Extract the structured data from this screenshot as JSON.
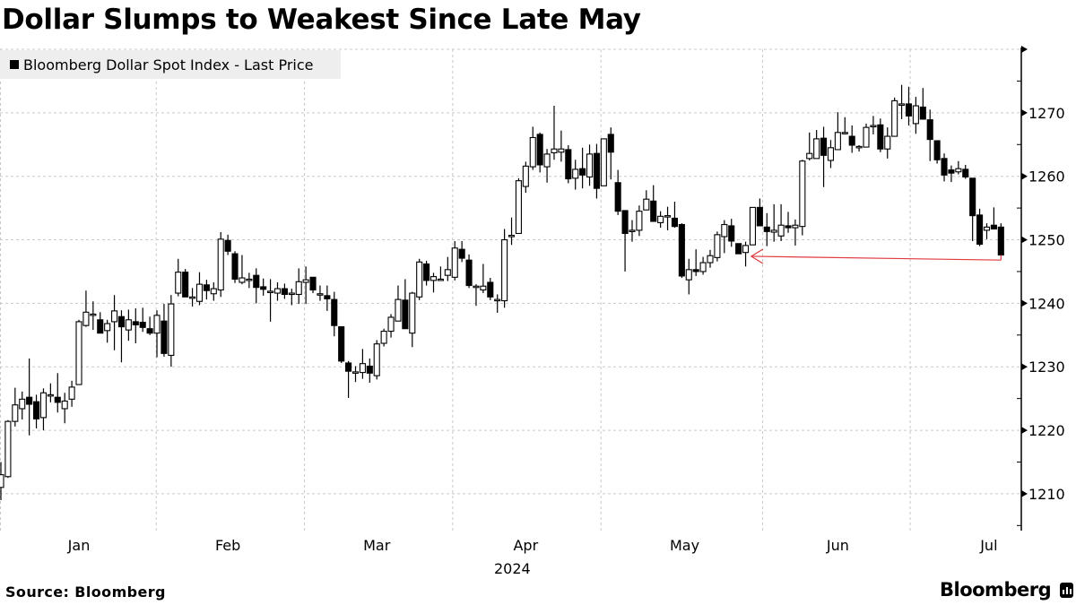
{
  "title": "Dollar Slumps to Weakest Since Late May",
  "legend": {
    "label": "Bloomberg Dollar Spot Index - Last Price"
  },
  "footer": {
    "source": "Source: Bloomberg",
    "brand": "Bloomberg"
  },
  "colors": {
    "up_fill": "#ffffff",
    "down_fill": "#000000",
    "grid": "#c8c8c8",
    "arrow": "#e0393e",
    "legend_bg": "#eeeeee"
  },
  "chart_data": {
    "type": "candlestick",
    "title": "Dollar Slumps to Weakest Since Late May",
    "series_name": "Bloomberg Dollar Spot Index - Last Price",
    "xlabel": "2024",
    "ylabel": "",
    "ylim": [
      1204.2,
      1280
    ],
    "y_ticks": [
      1210,
      1220,
      1230,
      1240,
      1250,
      1260,
      1270
    ],
    "y_grid": [
      1210,
      1220,
      1230,
      1240,
      1250,
      1260,
      1270,
      1280
    ],
    "x_month_labels": [
      {
        "label": "Jan",
        "index": 11
      },
      {
        "label": "Feb",
        "index": 32
      },
      {
        "label": "Mar",
        "index": 53
      },
      {
        "label": "Apr",
        "index": 74
      },
      {
        "label": "May",
        "index": 96.4
      },
      {
        "label": "Jun",
        "index": 118
      },
      {
        "label": "Jul",
        "index": 139.3
      }
    ],
    "x_month_boundaries": [
      21.9,
      42.8,
      63.7,
      84.6,
      107.4,
      128.2
    ],
    "year_label": "2024",
    "grid": true,
    "legend_position": "top-left",
    "candle_fields": [
      "open",
      "high",
      "low",
      "close"
    ],
    "candles": [
      [
        1211,
        1215,
        1209,
        1213
      ],
      [
        1212.7,
        1221.6,
        1212.5,
        1221.4
      ],
      [
        1221.4,
        1226.7,
        1220.6,
        1224.0
      ],
      [
        1223.4,
        1226.1,
        1221.7,
        1224.9
      ],
      [
        1225.2,
        1231.3,
        1219.2,
        1224.1
      ],
      [
        1224.5,
        1225.6,
        1220.3,
        1221.8
      ],
      [
        1222.0,
        1226.6,
        1220.0,
        1225.9
      ],
      [
        1225.6,
        1227.4,
        1224.4,
        1225.6
      ],
      [
        1225.2,
        1229.0,
        1222.8,
        1224.4
      ],
      [
        1223.4,
        1225.9,
        1221.1,
        1224.6
      ],
      [
        1224.9,
        1227.8,
        1223.7,
        1226.8
      ],
      [
        1227.2,
        1237.4,
        1227.2,
        1237.1
      ],
      [
        1236.5,
        1242.0,
        1236.3,
        1238.6
      ],
      [
        1238.3,
        1240.3,
        1235.8,
        1238.3
      ],
      [
        1237.4,
        1238.6,
        1235.3,
        1235.3
      ],
      [
        1235.7,
        1237.4,
        1233.8,
        1236.8
      ],
      [
        1237.1,
        1241.3,
        1232.6,
        1238.8
      ],
      [
        1237.9,
        1238.9,
        1230.7,
        1236.3
      ],
      [
        1235.8,
        1239.0,
        1234.1,
        1237.4
      ],
      [
        1237.1,
        1239.2,
        1233.7,
        1236.6
      ],
      [
        1237.0,
        1239.3,
        1235.5,
        1236.2
      ],
      [
        1236.0,
        1237.9,
        1235.0,
        1235.3
      ],
      [
        1235.3,
        1238.9,
        1231.5,
        1238.1
      ],
      [
        1237.2,
        1239.9,
        1231.6,
        1232.1
      ],
      [
        1231.8,
        1241.3,
        1230.0,
        1239.9
      ],
      [
        1241.6,
        1247.0,
        1241.1,
        1244.9
      ],
      [
        1244.9,
        1245.4,
        1241.0,
        1241.0
      ],
      [
        1241.0,
        1242.4,
        1239.5,
        1241.0
      ],
      [
        1240.3,
        1244.9,
        1239.7,
        1243.0
      ],
      [
        1242.9,
        1243.7,
        1240.6,
        1242.0
      ],
      [
        1241.5,
        1243.3,
        1240.4,
        1242.3
      ],
      [
        1242.1,
        1251.2,
        1241.0,
        1250.1
      ],
      [
        1249.9,
        1250.8,
        1247.6,
        1248.2
      ],
      [
        1247.8,
        1248.2,
        1243.2,
        1243.8
      ],
      [
        1243.3,
        1247.6,
        1243.0,
        1244.0
      ],
      [
        1243.6,
        1244.8,
        1242.4,
        1243.8
      ],
      [
        1244.4,
        1245.5,
        1240.0,
        1242.5
      ],
      [
        1242.6,
        1243.9,
        1241.2,
        1242.2
      ],
      [
        1241.9,
        1243.8,
        1237.1,
        1241.9
      ],
      [
        1241.6,
        1243.3,
        1240.4,
        1242.3
      ],
      [
        1242.3,
        1243.1,
        1240.7,
        1241.4
      ],
      [
        1241.6,
        1242.3,
        1239.7,
        1241.6
      ],
      [
        1241.4,
        1245.5,
        1239.9,
        1243.4
      ],
      [
        1243.3,
        1245.8,
        1239.9,
        1243.7
      ],
      [
        1244.1,
        1244.1,
        1241.6,
        1242.1
      ],
      [
        1241.5,
        1242.8,
        1240.4,
        1241.5
      ],
      [
        1241.2,
        1242.8,
        1238.8,
        1240.7
      ],
      [
        1240.6,
        1241.8,
        1234.8,
        1236.5
      ],
      [
        1236.3,
        1236.3,
        1230.6,
        1230.9
      ],
      [
        1230.6,
        1230.9,
        1225.1,
        1229.3
      ],
      [
        1229.2,
        1230.1,
        1227.6,
        1229.2
      ],
      [
        1229.1,
        1232.8,
        1228.1,
        1230.5
      ],
      [
        1230.1,
        1231.3,
        1227.5,
        1229.0
      ],
      [
        1228.6,
        1234.2,
        1228.0,
        1233.6
      ],
      [
        1233.7,
        1236.0,
        1233.2,
        1235.6
      ],
      [
        1235.6,
        1238.3,
        1234.6,
        1237.8
      ],
      [
        1237.2,
        1242.8,
        1237.2,
        1240.6
      ],
      [
        1240.5,
        1243.8,
        1236.0,
        1236.0
      ],
      [
        1235.3,
        1241.8,
        1233.1,
        1241.6
      ],
      [
        1241.0,
        1247.0,
        1240.5,
        1246.5
      ],
      [
        1246.2,
        1246.7,
        1242.8,
        1243.6
      ],
      [
        1243.6,
        1244.8,
        1241.7,
        1244.2
      ],
      [
        1243.8,
        1245.8,
        1243.6,
        1243.8
      ],
      [
        1244.4,
        1247.3,
        1243.5,
        1245.3
      ],
      [
        1244.1,
        1249.8,
        1243.6,
        1248.7
      ],
      [
        1248.5,
        1249.8,
        1246.5,
        1247.1
      ],
      [
        1246.8,
        1247.7,
        1242.4,
        1242.8
      ],
      [
        1242.5,
        1243.0,
        1239.6,
        1242.7
      ],
      [
        1242.1,
        1246.2,
        1241.6,
        1242.7
      ],
      [
        1243.3,
        1244.0,
        1240.5,
        1241.0
      ],
      [
        1240.6,
        1241.4,
        1238.5,
        1240.6
      ],
      [
        1240.4,
        1251.7,
        1239.3,
        1250.0
      ],
      [
        1250.7,
        1253.5,
        1249.2,
        1250.7
      ],
      [
        1251.0,
        1259.7,
        1251.0,
        1259.3
      ],
      [
        1258.4,
        1262.3,
        1257.4,
        1261.6
      ],
      [
        1261.5,
        1267.8,
        1261.0,
        1266.1
      ],
      [
        1266.6,
        1266.9,
        1260.6,
        1261.8
      ],
      [
        1261.5,
        1264.3,
        1259.0,
        1263.5
      ],
      [
        1263.7,
        1271.1,
        1262.6,
        1264.3
      ],
      [
        1263.8,
        1267.2,
        1262.3,
        1264.3
      ],
      [
        1264.2,
        1264.9,
        1258.9,
        1259.6
      ],
      [
        1259.7,
        1262.6,
        1257.9,
        1261.1
      ],
      [
        1261.2,
        1264.5,
        1258.1,
        1260.2
      ],
      [
        1259.9,
        1265.0,
        1258.5,
        1263.5
      ],
      [
        1263.6,
        1265.1,
        1256.5,
        1258.1
      ],
      [
        1258.5,
        1265.9,
        1258.5,
        1265.9
      ],
      [
        1266.6,
        1267.7,
        1259.5,
        1263.8
      ],
      [
        1259.0,
        1261.0,
        1253.9,
        1254.5
      ],
      [
        1254.6,
        1254.6,
        1245.0,
        1251.0
      ],
      [
        1251.5,
        1253.1,
        1249.7,
        1251.5
      ],
      [
        1251.5,
        1255.4,
        1250.6,
        1254.5
      ],
      [
        1254.7,
        1257.8,
        1254.7,
        1256.4
      ],
      [
        1256.1,
        1258.6,
        1252.9,
        1252.9
      ],
      [
        1252.7,
        1254.5,
        1251.9,
        1253.7
      ],
      [
        1253.8,
        1255.2,
        1251.5,
        1253.8
      ],
      [
        1253.4,
        1256.0,
        1251.9,
        1252.1
      ],
      [
        1252.4,
        1252.6,
        1244.0,
        1244.3
      ],
      [
        1243.7,
        1247.0,
        1241.4,
        1245.3
      ],
      [
        1245.3,
        1248.5,
        1244.3,
        1245.0
      ],
      [
        1245.0,
        1247.3,
        1244.5,
        1246.4
      ],
      [
        1246.4,
        1248.4,
        1245.6,
        1247.5
      ],
      [
        1247.2,
        1251.3,
        1246.6,
        1250.8
      ],
      [
        1250.5,
        1253.1,
        1247.9,
        1252.4
      ],
      [
        1252.2,
        1253.3,
        1248.9,
        1249.8
      ],
      [
        1249.4,
        1249.4,
        1247.8,
        1247.8
      ],
      [
        1248.0,
        1249.7,
        1245.8,
        1249.1
      ],
      [
        1249.2,
        1255.1,
        1249.2,
        1255.1
      ],
      [
        1255.1,
        1256.5,
        1252.2,
        1252.2
      ],
      [
        1252.0,
        1254.2,
        1249.0,
        1251.3
      ],
      [
        1251.2,
        1255.6,
        1249.7,
        1251.5
      ],
      [
        1250.6,
        1255.6,
        1249.8,
        1252.3
      ],
      [
        1252.2,
        1254.4,
        1251.1,
        1251.9
      ],
      [
        1251.9,
        1253.2,
        1249.1,
        1252.3
      ],
      [
        1252.1,
        1262.6,
        1250.7,
        1262.4
      ],
      [
        1262.8,
        1266.9,
        1262.5,
        1263.6
      ],
      [
        1262.8,
        1267.3,
        1262.8,
        1265.9
      ],
      [
        1266.0,
        1267.8,
        1258.3,
        1263.3
      ],
      [
        1262.5,
        1265.7,
        1261.3,
        1264.5
      ],
      [
        1264.2,
        1270.1,
        1264.2,
        1266.9
      ],
      [
        1266.9,
        1269.3,
        1266.6,
        1266.9
      ],
      [
        1266.3,
        1268.0,
        1263.7,
        1264.9
      ],
      [
        1264.7,
        1264.9,
        1263.9,
        1264.7
      ],
      [
        1264.6,
        1268.3,
        1264.6,
        1267.7
      ],
      [
        1268.0,
        1269.5,
        1266.6,
        1268.0
      ],
      [
        1268.1,
        1269.1,
        1263.8,
        1264.3
      ],
      [
        1264.3,
        1267.7,
        1262.8,
        1266.3
      ],
      [
        1266.3,
        1272.4,
        1266.3,
        1271.9
      ],
      [
        1271.4,
        1274.4,
        1269.0,
        1271.4
      ],
      [
        1271.4,
        1274.1,
        1268.0,
        1269.5
      ],
      [
        1268.3,
        1272.5,
        1266.7,
        1271.1
      ],
      [
        1270.9,
        1273.9,
        1269.0,
        1269.0
      ],
      [
        1268.9,
        1270.5,
        1262.4,
        1265.8
      ],
      [
        1265.6,
        1265.6,
        1262.0,
        1262.6
      ],
      [
        1262.8,
        1263.6,
        1259.2,
        1260.2
      ],
      [
        1261.0,
        1261.7,
        1259.1,
        1260.5
      ],
      [
        1260.7,
        1262.4,
        1260.3,
        1261.2
      ],
      [
        1261.1,
        1261.8,
        1259.6,
        1259.9
      ],
      [
        1259.7,
        1259.7,
        1249.8,
        1253.8
      ],
      [
        1253.9,
        1254.9,
        1249.0,
        1249.3
      ],
      [
        1251.5,
        1252.6,
        1250.1,
        1252.0
      ],
      [
        1252.3,
        1255.1,
        1251.7,
        1251.7
      ],
      [
        1252.0,
        1252.6,
        1247.6,
        1247.6
      ]
    ],
    "annotations": [
      {
        "type": "arrow",
        "from": {
          "index": 141,
          "value": 1246.8
        },
        "to": {
          "index": 105.8,
          "value": 1247.4
        }
      }
    ]
  }
}
